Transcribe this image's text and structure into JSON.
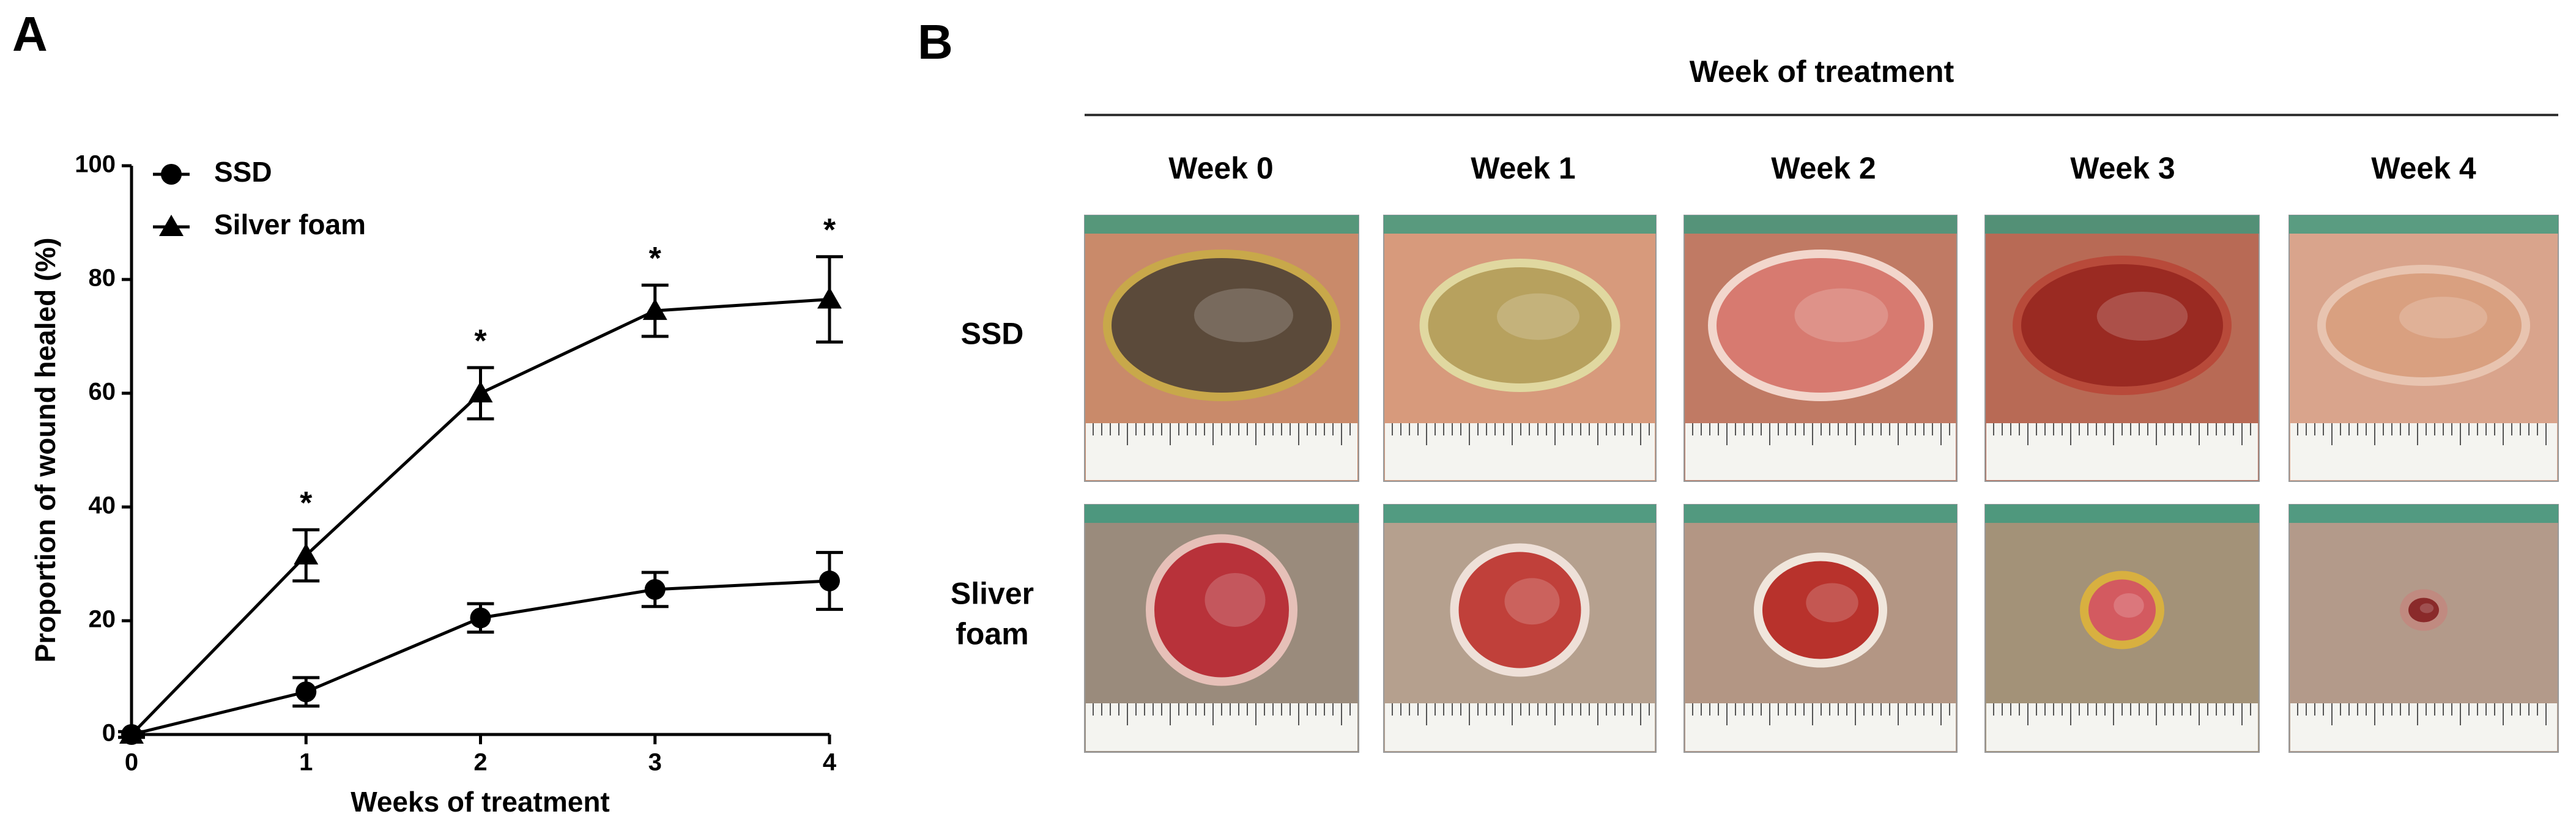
{
  "panel_labels": [
    "A",
    "B"
  ],
  "chart_data": {
    "type": "line",
    "x_label": "Weeks of treatment",
    "y_label": "Proportion of wound healed (%)",
    "x": [
      0,
      1,
      2,
      3,
      4
    ],
    "xlim": [
      0,
      4
    ],
    "xticks": [
      0,
      1,
      2,
      3,
      4
    ],
    "ylim": [
      0,
      100
    ],
    "yticks": [
      0,
      20,
      40,
      60,
      80,
      100
    ],
    "legend": "upper left",
    "series": [
      {
        "name": "SSD",
        "color": "#000000",
        "marker": "circle",
        "values": [
          0,
          7.5,
          20.5,
          25.5,
          27
        ],
        "errors": [
          0.5,
          2.5,
          2.5,
          3,
          5
        ]
      },
      {
        "name": "Silver foam",
        "color": "#000000",
        "marker": "triangle",
        "values": [
          0,
          31.5,
          60,
          74.5,
          76.5
        ],
        "errors": [
          0.5,
          4.5,
          4.5,
          4.5,
          7.5
        ]
      }
    ],
    "significance": {
      "label": "*",
      "x": [
        1,
        2,
        3,
        4
      ]
    }
  },
  "photo_panel": {
    "title": "Week of treatment",
    "columns": [
      "Week 0",
      "Week 1",
      "Week 2",
      "Week 3",
      "Week 4"
    ],
    "rows": [
      [
        "SSD"
      ],
      [
        "Sliver",
        "foam"
      ]
    ]
  }
}
